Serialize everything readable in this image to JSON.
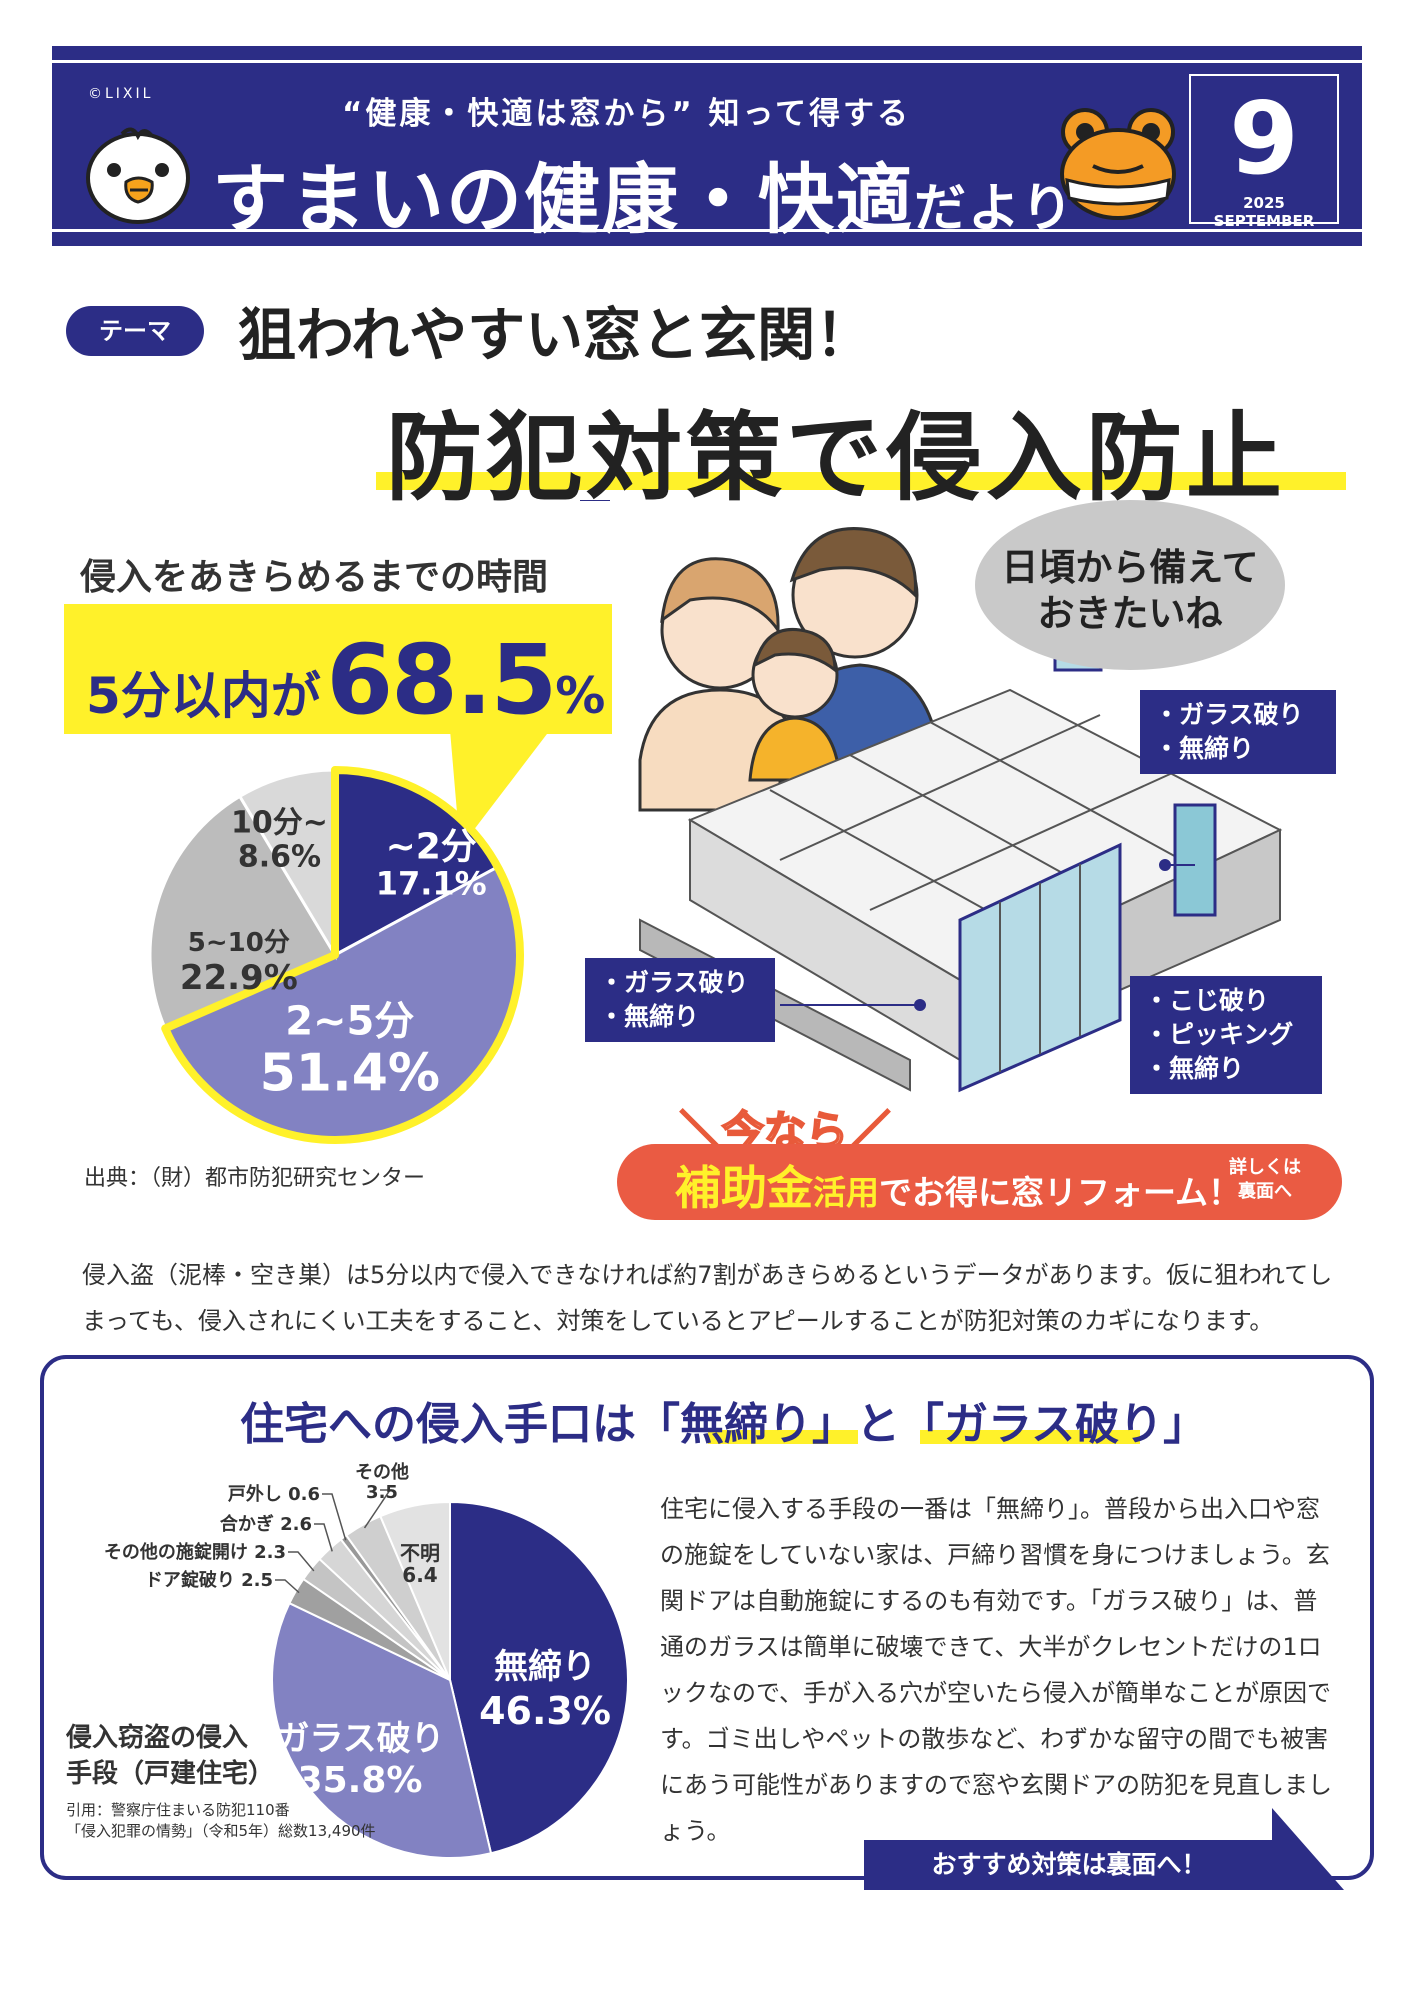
{
  "header": {
    "copyright": "©LIXIL",
    "subtitle": "“健康・快適は窓から” 知って得する",
    "title_main": "すまいの健康・快適",
    "title_suffix": "だより",
    "issue_number": "9",
    "issue_date": "2025 SEPTEMBER",
    "brand_color": "#2c2d86"
  },
  "theme": {
    "badge": "テーマ",
    "line1": "狙われやすい窓と玄関！",
    "line2": "防犯対策で侵入防止"
  },
  "intrusion_time": {
    "title": "侵入をあきらめるまでの時間",
    "highlight_prefix": "5分以内が",
    "highlight_number": "68.5",
    "highlight_unit": "%",
    "source": "出典：（財）都市防犯研究センター"
  },
  "chart_data": [
    {
      "type": "pie",
      "title": "侵入をあきらめるまでの時間",
      "slices": [
        {
          "label": "~2分",
          "value": 17.1,
          "display": "17.1%",
          "color": "#2c2d86"
        },
        {
          "label": "2~5分",
          "value": 51.4,
          "display": "51.4%",
          "color": "#8282c2"
        },
        {
          "label": "5~10分",
          "value": 22.9,
          "display": "22.9%",
          "color": "#bcbcbc"
        },
        {
          "label": "10分~",
          "value": 8.6,
          "display": "8.6%",
          "color": "#d9d9d9"
        }
      ]
    },
    {
      "type": "pie",
      "title": "侵入窃盗の侵入手段（戸建住宅）",
      "slices": [
        {
          "label": "無締り",
          "value": 46.3,
          "display": "46.3%",
          "color": "#2c2d86"
        },
        {
          "label": "ガラス破り",
          "value": 35.8,
          "display": "35.8%",
          "color": "#8282c2"
        },
        {
          "label": "ドア錠破り",
          "value": 2.5,
          "display": "2.5",
          "color": "#a0a0a0"
        },
        {
          "label": "その他の施錠開け",
          "value": 2.3,
          "display": "2.3",
          "color": "#c4c4c4"
        },
        {
          "label": "合かぎ",
          "value": 2.6,
          "display": "2.6",
          "color": "#d6d6d6"
        },
        {
          "label": "戸外し",
          "value": 0.6,
          "display": "0.6",
          "color": "#999999"
        },
        {
          "label": "その他",
          "value": 3.5,
          "display": "3.5",
          "color": "#cfcfcf"
        },
        {
          "label": "不明",
          "value": 6.4,
          "display": "6.4",
          "color": "#e2e2e2"
        }
      ]
    }
  ],
  "illustration": {
    "speech": [
      "日頃から備えて",
      "おきたいね"
    ],
    "label_window_upper": [
      "・ガラス破り",
      "・無締り"
    ],
    "label_window_lower": [
      "・ガラス破り",
      "・無締り"
    ],
    "label_door": [
      "・こじ破り",
      "・ピッキング",
      "・無締り"
    ]
  },
  "subsidy": {
    "now": "＼今なら／",
    "main_big": "補助金",
    "main_mid": "活用",
    "main_rest": "でお得に窓リフォーム！",
    "note_line1": "詳しくは",
    "note_line2": "裏面へ",
    "color": "#ea5b43"
  },
  "body_paragraph": "侵入盗（泥棒・空き巣）は5分以内で侵入できなければ約7割があきらめるというデータがあります。仮に狙われてしまっても、侵入されにくい工夫をすること、対策をしているとアピールすることが防犯対策のカギになります。",
  "methods": {
    "title_pre": "住宅への侵入手口は",
    "title_kw1": "「無締り」",
    "title_mid": "と",
    "title_kw2": "「ガラス破り」",
    "chart_label_line1": "侵入窃盗の侵入",
    "chart_label_line2": "手段（戸建住宅）",
    "citation_line1": "引用：警察庁住まいる防犯110番",
    "citation_line2": "「侵入犯罪の情勢」（令和5年）総数13,490件",
    "description": "住宅に侵入する手段の一番は「無締り」。普段から出入口や窓の施錠をしていない家は、戸締り習慣を身につけましょう。玄関ドアは自動施錠にするのも有効です。「ガラス破り」は、普通のガラスは簡単に破壊できて、大半がクレセントだけの1ロックなので、手が入る穴が空いたら侵入が簡単なことが原因です。ゴミ出しやペットの散歩など、わずかな留守の間でも被害にあう可能性がありますので窓や玄関ドアの防犯を見直しましょう。",
    "cta": "おすすめ対策は裏面へ！"
  },
  "icons": [
    "chick-mascot-icon",
    "frog-mascot-icon",
    "family-illustration",
    "house-cutaway-illustration"
  ]
}
